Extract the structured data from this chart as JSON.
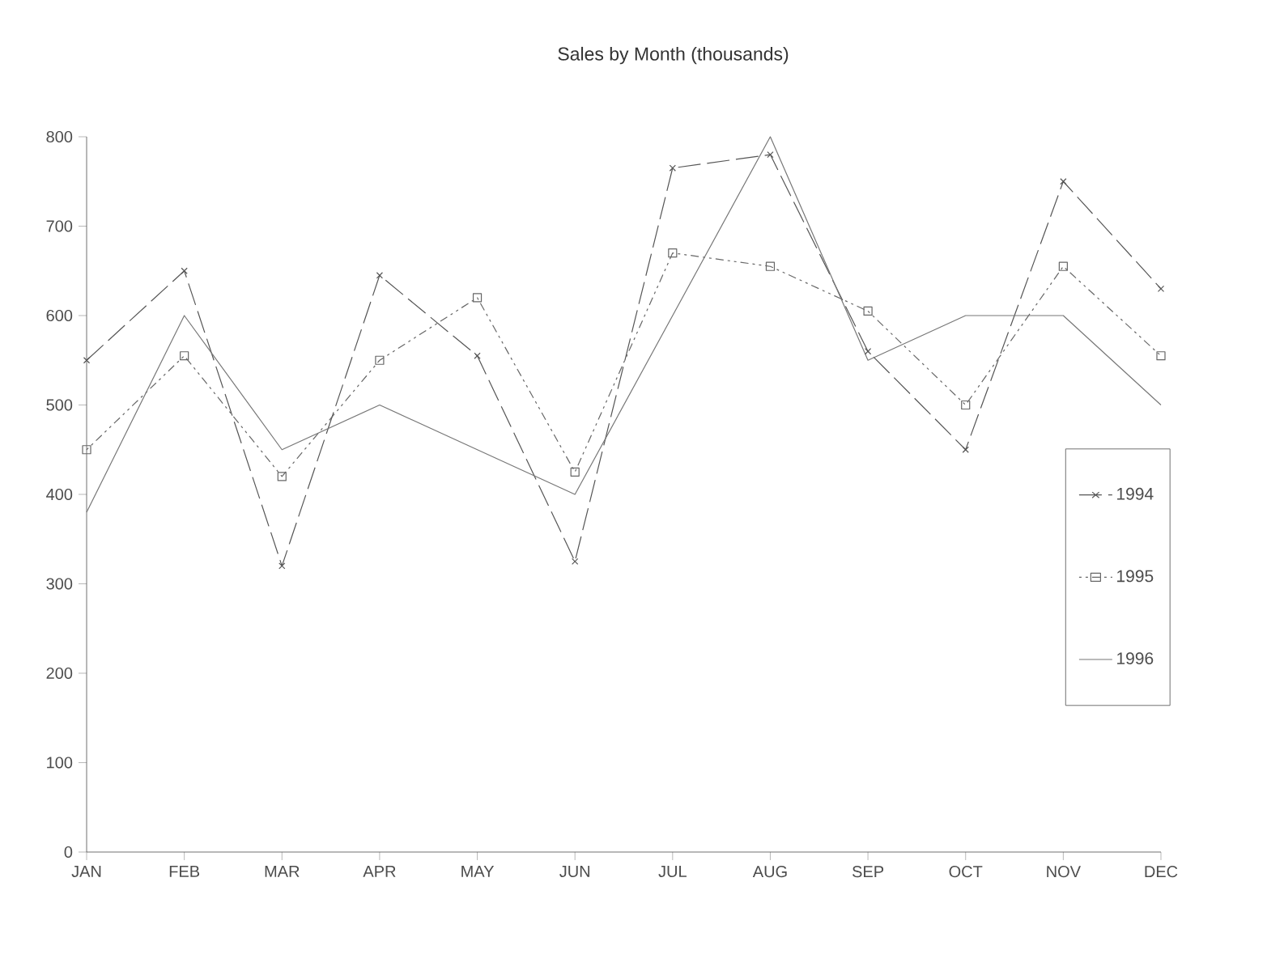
{
  "chart_data": {
    "type": "line",
    "title": "Sales by Month (thousands)",
    "categories": [
      "JAN",
      "FEB",
      "MAR",
      "APR",
      "MAY",
      "JUN",
      "JUL",
      "AUG",
      "SEP",
      "OCT",
      "NOV",
      "DEC"
    ],
    "series": [
      {
        "name": "1994",
        "color": "#555555",
        "marker": "cross",
        "line_style": "dashed",
        "values": [
          550,
          650,
          320,
          645,
          555,
          325,
          765,
          780,
          560,
          450,
          750,
          630
        ]
      },
      {
        "name": "1995",
        "color": "#666666",
        "marker": "square",
        "line_style": "dotted",
        "values": [
          450,
          555,
          420,
          550,
          620,
          425,
          670,
          655,
          605,
          500,
          655,
          555
        ]
      },
      {
        "name": "1996",
        "color": "#777777",
        "marker": "none",
        "line_style": "solid",
        "values": [
          380,
          600,
          450,
          500,
          450,
          400,
          600,
          800,
          550,
          600,
          600,
          500
        ]
      }
    ],
    "ylim": [
      0,
      800
    ],
    "yticks": [
      0,
      100,
      200,
      300,
      400,
      500,
      600,
      700,
      800
    ],
    "legend": "right"
  }
}
